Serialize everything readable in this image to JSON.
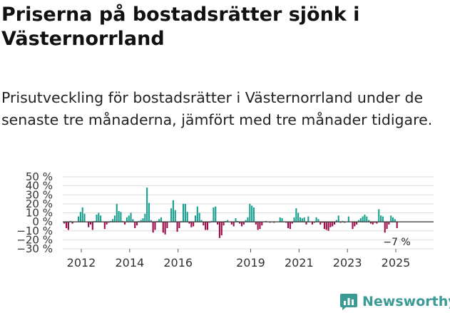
{
  "title": "Priserna på bostadsrätter sjönk i Västernorrland",
  "subtitle": "Prisutveckling för bostadsrätter i Västernorrland under de senaste tre månaderna, jämfört med tre månader tidigare.",
  "brand": {
    "name": "Newsworthy",
    "icon": "newsworthy-logo-icon"
  },
  "colors": {
    "positive": "#1a9e8f",
    "negative": "#9c0c4a",
    "grid": "#dddddd",
    "axis": "#333333",
    "brand": "#3a9a94"
  },
  "chart_data": {
    "type": "bar",
    "title": "Priserna på bostadsrätter sjönk i Västernorrland",
    "xlabel": "",
    "ylabel": "",
    "ylim": [
      -30,
      50
    ],
    "yticks": [
      50,
      40,
      30,
      20,
      10,
      0,
      -10,
      -20,
      -30
    ],
    "ytick_labels": [
      "50 %",
      "40 %",
      "30 %",
      "20 %",
      "10 %",
      "0 %",
      "−10 %",
      "−20 %",
      "−30 %"
    ],
    "xticks": [
      2012,
      2014,
      2016,
      2019,
      2021,
      2023,
      2025
    ],
    "xtick_labels": [
      "2012",
      "2014",
      "2016",
      "2019",
      "2021",
      "2023",
      "2025"
    ],
    "x_start": 2011.3,
    "x_step": 0.08333,
    "last_value_label": "−7 %",
    "values": [
      -2,
      -7,
      -9,
      1,
      -2,
      0,
      0,
      6,
      11,
      16,
      9,
      0,
      -6,
      -3,
      -9,
      1,
      8,
      10,
      7,
      0,
      -8,
      -3,
      -1,
      1,
      3,
      7,
      20,
      12,
      11,
      1,
      -3,
      5,
      7,
      10,
      3,
      -7,
      -4,
      1,
      2,
      4,
      9,
      38,
      21,
      2,
      -12,
      -9,
      1,
      3,
      5,
      -12,
      -14,
      -7,
      0,
      15,
      24,
      13,
      -11,
      -7,
      1,
      20,
      20,
      11,
      -2,
      -6,
      -5,
      7,
      17,
      10,
      2,
      -4,
      -9,
      -9,
      -1,
      1,
      16,
      17,
      -3,
      -18,
      -15,
      -4,
      1,
      2,
      0,
      -3,
      -5,
      4,
      1,
      -2,
      -5,
      -3,
      2,
      5,
      20,
      18,
      16,
      -3,
      -9,
      -8,
      -4,
      0,
      1,
      0,
      -1,
      0,
      -1,
      0,
      0,
      5,
      4,
      0,
      -1,
      -7,
      -8,
      -2,
      5,
      15,
      10,
      5,
      4,
      5,
      -3,
      6,
      0,
      -3,
      -1,
      5,
      3,
      -3,
      -1,
      -8,
      -9,
      -10,
      -6,
      -5,
      -3,
      2,
      7,
      -1,
      1,
      -1,
      0,
      6,
      0,
      -8,
      -5,
      -3,
      2,
      4,
      6,
      8,
      6,
      2,
      -2,
      -3,
      -1,
      -2,
      14,
      7,
      6,
      -12,
      -8,
      -3,
      7,
      5,
      3,
      -7
    ]
  }
}
